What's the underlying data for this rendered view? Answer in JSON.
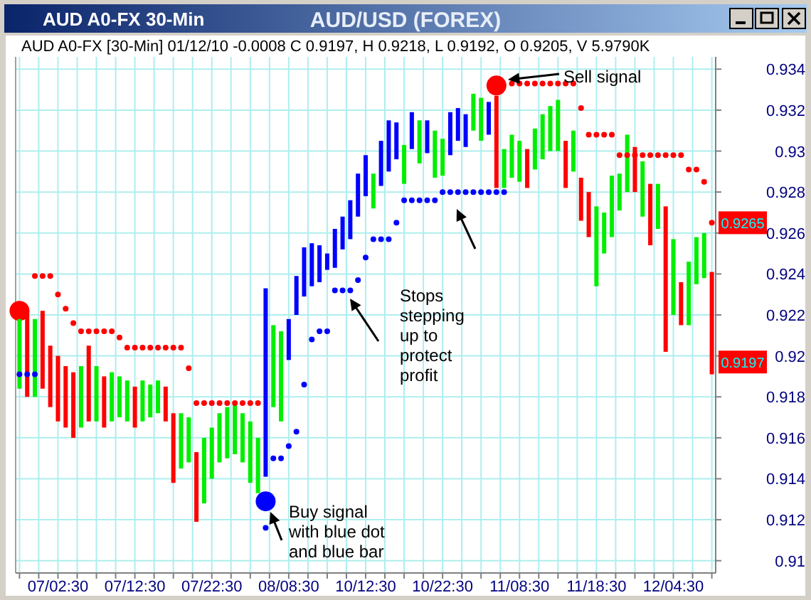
{
  "chart_data": {
    "type": "bar",
    "title": "AUD/USD (FOREX)",
    "annotations": [
      "AUD A0-FX 30-Min",
      "AUD A0-FX [30-Min] 01/12/10  -0.0008 C 0.9197, H 0.9218, L 0.9192, O 0.9205, V 5.9790K",
      "Sell signal",
      "Buy signal\nwith blue dot\nand blue bar",
      "Stops\nstepping\nup to\nprotect\nprofit",
      {
        "text": "0.9265",
        "y": 0.9265
      },
      {
        "text": "0.9197",
        "y": 0.9197
      }
    ],
    "categories": [
      null,
      null,
      null,
      null,
      null,
      "07/02:30",
      null,
      null,
      null,
      null,
      null,
      null,
      null,
      null,
      null,
      "07/12:30",
      null,
      null,
      null,
      null,
      null,
      null,
      null,
      null,
      null,
      "07/22:30",
      null,
      null,
      null,
      null,
      null,
      null,
      null,
      null,
      null,
      "08/08:30",
      null,
      null,
      null,
      null,
      null,
      null,
      null,
      null,
      null,
      "10/12:30",
      null,
      null,
      null,
      null,
      null,
      null,
      null,
      null,
      null,
      "10/22:30",
      null,
      null,
      null,
      null,
      null,
      null,
      null,
      null,
      null,
      "11/08:30",
      null,
      null,
      null,
      null,
      null,
      null,
      null,
      null,
      null,
      "11/18:30",
      null,
      null,
      null,
      null,
      null,
      null,
      null,
      null,
      null,
      "12/04:30",
      null,
      null,
      null,
      null,
      null
    ],
    "series": [
      {
        "base": [
          0.9184,
          0.918,
          0.918,
          0.9184,
          0.9175,
          0.9168,
          0.9165,
          0.916,
          0.9165,
          0.9168,
          0.9168,
          0.9165,
          0.9168,
          0.917,
          0.9168,
          0.9165,
          0.9168,
          0.917,
          0.9172,
          0.9168,
          0.9138,
          0.9145,
          0.9148,
          0.9119,
          0.9128,
          0.914,
          0.9148,
          0.915,
          0.9152,
          0.9148,
          0.9138,
          0.9133,
          0.9141,
          0.9175,
          0.9168,
          0.9198,
          0.922,
          0.9229,
          0.9234,
          0.9236,
          0.9242,
          0.9243,
          0.9252,
          0.9257,
          0.9268,
          0.9278,
          0.9272,
          0.9283,
          0.929,
          0.9296,
          0.9284,
          0.9301,
          0.9294,
          0.9299,
          0.9287,
          0.9288,
          0.9298,
          0.9305,
          0.9302,
          0.931,
          0.9305,
          0.9308,
          0.9282,
          0.9282,
          0.9287,
          0.9285,
          0.9282,
          0.9291,
          0.9296,
          0.93,
          0.93,
          0.9282,
          0.929,
          0.9266,
          0.9258,
          0.9234,
          0.925,
          0.9258,
          0.9271,
          0.928,
          0.928,
          0.9268,
          0.9254,
          0.9262,
          0.9202,
          0.922,
          0.9215,
          0.9215,
          0.9235,
          0.9238,
          0.9191
        ],
        "values": [
          0.0034,
          0.0042,
          0.0038,
          0.0038,
          0.003,
          0.0032,
          0.003,
          0.0032,
          0.003,
          0.0037,
          0.0027,
          0.0025,
          0.0024,
          0.002,
          0.002,
          0.002,
          0.002,
          0.0016,
          0.0016,
          0.0017,
          0.0034,
          0.0027,
          0.0022,
          0.0034,
          0.0032,
          0.0025,
          0.0024,
          0.0025,
          0.0024,
          0.0024,
          0.003,
          0.0027,
          0.0092,
          0.004,
          0.0044,
          0.002,
          0.0019,
          0.0024,
          0.0021,
          0.0018,
          0.0008,
          0.0019,
          0.0016,
          0.0019,
          0.0021,
          0.002,
          0.0017,
          0.0022,
          0.0025,
          0.0018,
          0.0019,
          0.0018,
          0.0021,
          0.0016,
          0.0023,
          0.0018,
          0.0021,
          0.0016,
          0.0016,
          0.0018,
          0.0021,
          0.0016,
          0.0045,
          0.0019,
          0.0021,
          0.002,
          0.0019,
          0.002,
          0.0022,
          0.0022,
          0.0025,
          0.0023,
          0.002,
          0.0021,
          0.0022,
          0.0039,
          0.002,
          0.003,
          0.0018,
          0.0028,
          0.0022,
          0.0027,
          0.003,
          0.0022,
          0.0071,
          0.0037,
          0.0021,
          0.0031,
          0.0023,
          0.0022,
          0.005
        ],
        "colors": [
          "#00ee00",
          "#ff0000",
          "#00ee00",
          "#ff0000",
          "#ff0000",
          "#ff0000",
          "#ff0000",
          "#ff0000",
          "#00ee00",
          "#ff0000",
          "#00ee00",
          "#ff0000",
          "#00ee00",
          "#00ee00",
          "#00ee00",
          "#ff0000",
          "#00ee00",
          "#00ee00",
          "#00ee00",
          "#ff0000",
          "#ff0000",
          "#00ee00",
          "#00ee00",
          "#ff0000",
          "#00ee00",
          "#00ee00",
          "#00ee00",
          "#00ee00",
          "#00ee00",
          "#00ee00",
          "#00ee00",
          "#00ee00",
          "#0000ff",
          "#00ee00",
          "#00ee00",
          "#0000ff",
          "#0000ff",
          "#0000ff",
          "#0000ff",
          "#0000ff",
          "#0000ff",
          "#0000ff",
          "#0000ff",
          "#0000ff",
          "#0000ff",
          "#0000ff",
          "#00ee00",
          "#0000ff",
          "#0000ff",
          "#0000ff",
          "#00ee00",
          "#0000ff",
          "#00ee00",
          "#0000ff",
          "#00ee00",
          "#00ee00",
          "#0000ff",
          "#0000ff",
          "#0000ff",
          "#00ee00",
          "#00ee00",
          "#0000ff",
          "#ff0000",
          "#00ee00",
          "#00ee00",
          "#00ee00",
          "#ff0000",
          "#00ee00",
          "#00ee00",
          "#00ee00",
          "#00ee00",
          "#ff0000",
          "#00ee00",
          "#ff0000",
          "#ff0000",
          "#00ee00",
          "#00ee00",
          "#00ee00",
          "#00ee00",
          "#00ee00",
          "#ff0000",
          "#00ee00",
          "#ff0000",
          "#00ee00",
          "#ff0000",
          "#00ee00",
          "#ff0000",
          "#00ee00",
          "#00ee00",
          "#00ee00",
          "#ff0000"
        ]
      },
      {
        "type": "scatter",
        "color": "#ff0000",
        "values": [
          null,
          null,
          0.9239,
          0.9239,
          0.9239,
          0.923,
          0.9223,
          0.9216,
          0.9212,
          0.9212,
          0.9212,
          0.9212,
          0.9212,
          0.9209,
          0.9204,
          0.9204,
          0.9204,
          0.9204,
          0.9204,
          0.9204,
          0.9204,
          0.9204,
          0.9194,
          0.9177,
          0.9177,
          0.9177,
          0.9177,
          0.9177,
          0.9177,
          0.9177,
          0.9177,
          0.9177,
          null,
          null,
          null,
          null,
          null,
          null,
          null,
          null,
          null,
          null,
          null,
          null,
          null,
          null,
          null,
          null,
          null,
          null,
          null,
          null,
          null,
          null,
          null,
          null,
          null,
          null,
          null,
          null,
          null,
          null,
          null,
          null,
          0.9333,
          0.9333,
          0.9333,
          0.9333,
          0.9333,
          0.9333,
          0.9333,
          0.9333,
          0.9333,
          0.9321,
          0.9308,
          0.9308,
          0.9308,
          0.9308,
          0.9298,
          0.9298,
          0.9298,
          0.9298,
          0.9298,
          0.9298,
          0.9298,
          0.9298,
          0.9298,
          0.9291,
          0.9291,
          0.9285,
          0.9265
        ]
      },
      {
        "type": "scatter",
        "color": "#0000ff",
        "values": [
          0.9191,
          0.9191,
          0.9191,
          null,
          null,
          null,
          null,
          null,
          null,
          null,
          null,
          null,
          null,
          null,
          null,
          null,
          null,
          null,
          null,
          null,
          null,
          null,
          null,
          null,
          null,
          null,
          null,
          null,
          null,
          null,
          null,
          null,
          0.9116,
          0.915,
          0.915,
          0.9156,
          0.9163,
          0.9186,
          0.9208,
          0.9212,
          0.9212,
          0.9232,
          0.9232,
          0.9232,
          0.9237,
          0.9248,
          0.9257,
          0.9257,
          0.9257,
          0.9265,
          0.9276,
          0.9276,
          0.9276,
          0.9276,
          0.9276,
          0.928,
          0.928,
          0.928,
          0.928,
          0.928,
          0.928,
          0.928,
          0.928,
          0.928,
          null,
          null,
          null,
          null,
          null,
          null,
          null,
          null,
          null,
          null,
          null,
          null,
          null,
          null,
          null,
          null,
          null,
          null,
          null,
          null,
          null,
          null,
          null,
          null,
          null,
          null,
          null
        ]
      },
      {
        "type": "bubble",
        "values": [
          0.9222,
          null,
          null,
          null,
          null,
          null,
          null,
          null,
          null,
          null,
          null,
          null,
          null,
          null,
          null,
          null,
          null,
          null,
          null,
          null,
          null,
          null,
          null,
          null,
          null,
          null,
          null,
          null,
          null,
          null,
          null,
          null,
          0.9129,
          null,
          null,
          null,
          null,
          null,
          null,
          null,
          null,
          null,
          null,
          null,
          null,
          null,
          null,
          null,
          null,
          null,
          null,
          null,
          null,
          null,
          null,
          null,
          null,
          null,
          null,
          null,
          null,
          null,
          0.9332,
          null,
          null,
          null,
          null,
          null,
          null,
          null,
          null,
          null,
          null,
          null,
          null,
          null,
          null,
          null,
          null,
          null,
          null,
          null,
          null,
          null,
          null,
          null,
          null,
          null,
          null,
          null,
          null
        ],
        "sizes": [
          1,
          null,
          null,
          null,
          null,
          null,
          null,
          null,
          null,
          null,
          null,
          null,
          null,
          null,
          null,
          null,
          null,
          null,
          null,
          null,
          null,
          null,
          null,
          null,
          null,
          null,
          null,
          null,
          null,
          null,
          null,
          null,
          1,
          null,
          null,
          null,
          null,
          null,
          null,
          null,
          null,
          null,
          null,
          null,
          null,
          null,
          null,
          null,
          null,
          null,
          null,
          null,
          null,
          null,
          null,
          null,
          null,
          null,
          null,
          null,
          null,
          null,
          1,
          null,
          null,
          null,
          null,
          null,
          null,
          null,
          null,
          null,
          null,
          null,
          null,
          null,
          null,
          null,
          null,
          null,
          null,
          null,
          null,
          null,
          null,
          null,
          null,
          null,
          null,
          null,
          null
        ],
        "colors": [
          "#ff0000",
          null,
          null,
          null,
          null,
          null,
          null,
          null,
          null,
          null,
          null,
          null,
          null,
          null,
          null,
          null,
          null,
          null,
          null,
          null,
          null,
          null,
          null,
          null,
          null,
          null,
          null,
          null,
          null,
          null,
          null,
          null,
          "#0000ff",
          null,
          null,
          null,
          null,
          null,
          null,
          null,
          null,
          null,
          null,
          null,
          null,
          null,
          null,
          null,
          null,
          null,
          null,
          null,
          null,
          null,
          null,
          null,
          null,
          null,
          null,
          null,
          null,
          null,
          "#ff0000",
          null,
          null,
          null,
          null,
          null,
          null,
          null,
          null,
          null,
          null,
          null,
          null,
          null,
          null,
          null,
          null,
          null,
          null,
          null,
          null,
          null,
          null,
          null,
          null,
          null,
          null,
          null,
          null
        ]
      }
    ],
    "ylim": [
      0.9094,
      0.9346
    ],
    "yticks": [
      0.91,
      0.912,
      0.914,
      0.916,
      0.918,
      0.92,
      0.922,
      0.924,
      0.926,
      0.928,
      0.93,
      0.932,
      0.934
    ],
    "grid": true
  }
}
